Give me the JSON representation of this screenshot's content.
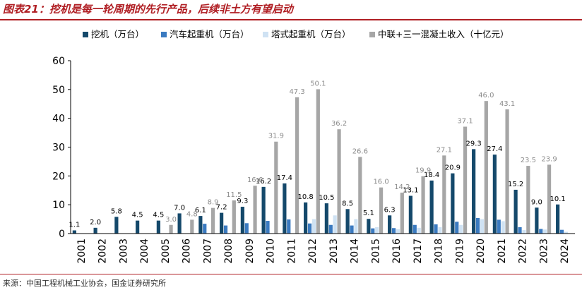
{
  "title": "图表21：挖机是每一轮周期的先行产品，后续非土方有望启动",
  "source": "来源：中国工程机械工业协会，国金证券研究所",
  "colors": {
    "title": "#b01f24",
    "excavator": "#15496b",
    "truck_crane": "#3a7ac0",
    "tower_crane": "#cfe2f3",
    "revenue": "#a6a6a6"
  },
  "chart_data": {
    "type": "bar",
    "categories": [
      "2001",
      "2002",
      "2003",
      "2004",
      "2005",
      "2006",
      "2007",
      "2008",
      "2009",
      "2010",
      "2011",
      "2012",
      "2013",
      "2014",
      "2015",
      "2016",
      "2017",
      "2018",
      "2019",
      "2020",
      "2021",
      "2022",
      "2023",
      "2024"
    ],
    "series": [
      {
        "name": "挖机（万台）",
        "color": "#15496b",
        "labeled": true,
        "values": [
          1.1,
          2.0,
          5.8,
          4.5,
          4.5,
          7.0,
          6.1,
          7.2,
          9.3,
          16.2,
          17.4,
          10.8,
          10.5,
          8.5,
          5.1,
          6.3,
          13.1,
          18.4,
          20.9,
          29.3,
          27.4,
          15.2,
          9.0,
          10.1
        ]
      },
      {
        "name": "汽车起重机（万台）",
        "color": "#3a7ac0",
        "labeled": false,
        "values": [
          0.0,
          0.0,
          0.0,
          0.0,
          0.0,
          0.0,
          3.4,
          2.8,
          3.6,
          4.4,
          4.9,
          3.5,
          3.0,
          2.8,
          1.8,
          1.9,
          3.0,
          3.2,
          4.1,
          5.4,
          4.8,
          2.2,
          1.6,
          1.3
        ]
      },
      {
        "name": "塔式起重机（万台）",
        "color": "#cfe2f3",
        "labeled": false,
        "values": [
          0.0,
          0.0,
          0.0,
          0.0,
          0.0,
          0.0,
          0.0,
          0.0,
          0.0,
          0.0,
          0.0,
          5.0,
          6.3,
          5.0,
          2.2,
          1.5,
          2.0,
          2.2,
          3.0,
          5.0,
          4.3,
          1.2,
          1.4,
          0.6
        ]
      },
      {
        "name": "中联+三一混凝土收入（十亿元）",
        "color": "#a6a6a6",
        "labeled": true,
        "values": [
          null,
          null,
          null,
          null,
          3.0,
          4.8,
          8.9,
          11.5,
          16.6,
          31.9,
          47.3,
          50.1,
          36.2,
          26.6,
          16.0,
          14.2,
          19.9,
          27.1,
          37.1,
          46.0,
          43.1,
          23.5,
          23.9,
          null
        ]
      }
    ],
    "ylim": [
      0,
      60
    ],
    "yticks": [
      0,
      10,
      20,
      30,
      40,
      50,
      60
    ],
    "grid": false,
    "legend": "top",
    "xlabel": "",
    "ylabel": ""
  }
}
